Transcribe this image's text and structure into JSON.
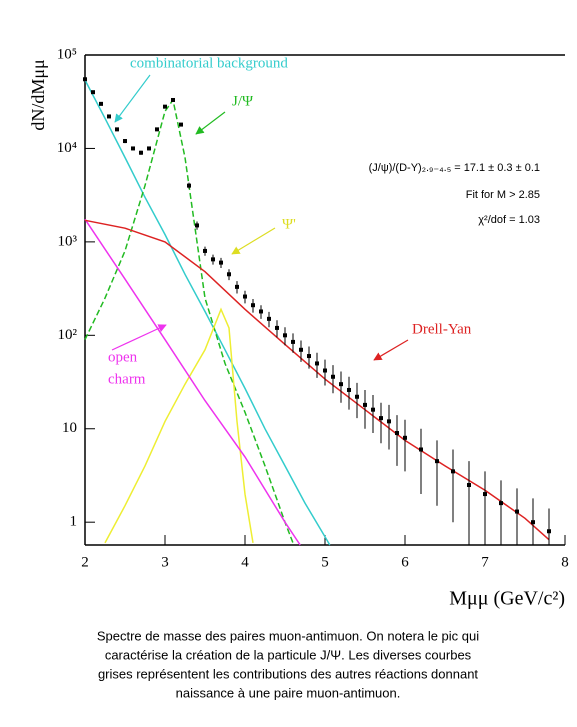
{
  "chart_data": {
    "type": "line",
    "log_y": true,
    "ylabel": "dN/dMμμ",
    "xlabel": "Mμμ (GeV/c²)",
    "xlim": [
      2,
      8
    ],
    "xticks": [
      2,
      3,
      4,
      5,
      6,
      7,
      8
    ],
    "ylim": [
      0.57,
      100000
    ],
    "yticks": [
      1,
      10,
      {
        "value": 100,
        "label": "10²"
      },
      {
        "value": 1000,
        "label": "10³"
      },
      {
        "value": 10000,
        "label": "10⁴"
      },
      {
        "value": 100000,
        "label": "10⁵"
      }
    ],
    "series": [
      {
        "name": "combinatorial background",
        "color": "#33cccc",
        "x": [
          2,
          2.25,
          2.5,
          2.75,
          3,
          3.25,
          3.5,
          3.75,
          4,
          4.25,
          4.5,
          4.75,
          5,
          5.06
        ],
        "values": [
          54000,
          21000,
          8000,
          3000,
          1200,
          450,
          180,
          70,
          27,
          10,
          4,
          1.6,
          0.7,
          0.57
        ]
      },
      {
        "name": "J/Ψ",
        "color": "#22bb22",
        "x": [
          2,
          2.25,
          2.5,
          2.75,
          3,
          3.1,
          3.25,
          3.5,
          3.75,
          4,
          4.25,
          4.5,
          4.6
        ],
        "values": [
          90,
          250,
          800,
          4000,
          25000,
          33000,
          8000,
          250,
          50,
          15,
          4,
          1,
          0.6
        ]
      },
      {
        "name": "Ψ'",
        "color": "#eeee33",
        "x": [
          2.25,
          2.5,
          2.75,
          3,
          3.25,
          3.5,
          3.7,
          3.8,
          3.9,
          4,
          4.1
        ],
        "values": [
          0.6,
          1.5,
          4,
          12,
          30,
          70,
          190,
          120,
          12,
          2,
          0.6
        ]
      },
      {
        "name": "open charm",
        "color": "#ee33ee",
        "x": [
          2,
          2.5,
          3,
          3.5,
          4,
          4.5,
          4.69
        ],
        "values": [
          1750,
          400,
          90,
          20,
          5,
          1,
          0.57
        ]
      },
      {
        "name": "Drell-Yan",
        "color": "#dd2222",
        "x": [
          2,
          2.5,
          3,
          3.5,
          4,
          4.5,
          5,
          5.5,
          6,
          6.5,
          7,
          7.5,
          7.8
        ],
        "values": [
          1700,
          1400,
          1000,
          480,
          190,
          80,
          34,
          16,
          7.5,
          4,
          2.2,
          1.1,
          0.65
        ]
      }
    ],
    "data_points": {
      "color": "#000000",
      "x": [
        2.0,
        2.1,
        2.2,
        2.3,
        2.4,
        2.5,
        2.6,
        2.7,
        2.8,
        2.9,
        3.0,
        3.1,
        3.2,
        3.3,
        3.4,
        3.5,
        3.6,
        3.7,
        3.8,
        3.9,
        4.0,
        4.1,
        4.2,
        4.3,
        4.4,
        4.5,
        4.6,
        4.7,
        4.8,
        4.9,
        5.0,
        5.1,
        5.2,
        5.3,
        5.4,
        5.5,
        5.6,
        5.7,
        5.8,
        5.9,
        6.0,
        6.2,
        6.4,
        6.6,
        6.8,
        7.0,
        7.2,
        7.4,
        7.6,
        7.8
      ],
      "values": [
        55000,
        40000,
        30000,
        22000,
        16000,
        12000,
        10000,
        9000,
        10000,
        16000,
        28000,
        33000,
        18000,
        4000,
        1500,
        800,
        650,
        600,
        450,
        330,
        260,
        210,
        180,
        150,
        120,
        100,
        85,
        70,
        60,
        50,
        42,
        36,
        30,
        26,
        22,
        18,
        16,
        13,
        12,
        9,
        8,
        6,
        4.5,
        3.5,
        2.5,
        2,
        1.6,
        1.3,
        1,
        0.8
      ],
      "errors": [
        1500,
        1200,
        1000,
        800,
        700,
        600,
        500,
        450,
        500,
        650,
        850,
        900,
        700,
        300,
        150,
        90,
        80,
        75,
        60,
        50,
        40,
        35,
        30,
        28,
        25,
        22,
        20,
        18,
        16,
        15,
        13,
        12,
        11,
        10,
        9,
        8,
        7,
        6,
        6,
        5,
        4.5,
        4,
        3,
        2.5,
        2,
        1.5,
        1.2,
        1,
        0.8,
        0.6
      ]
    },
    "annotations": [
      {
        "text": "combinatorial background",
        "color": "#33cccc"
      },
      {
        "text": "J/Ψ",
        "color": "#22bb22"
      },
      {
        "text": "Ψ'",
        "color": "#dddd22"
      },
      {
        "text": "open",
        "color": "#ee33ee"
      },
      {
        "text": "charm",
        "color": "#ee33ee"
      },
      {
        "text": "Drell-Yan",
        "color": "#dd2222"
      }
    ],
    "stats": [
      "(J/ψ)/(D-Y)₂.₉₋₄.₅ = 17.1  ± 0.3  ± 0.1",
      "Fit for M > 2.85",
      "χ²/dof = 1.03"
    ]
  },
  "caption": [
    "Spectre de masse des paires muon-antimuon. On notera le pic qui",
    "caractérise la création de la particule J/Ψ.  Les diverses courbes",
    "grises représentent les contributions des autres réactions donnant",
    "naissance à une paire muon-antimuon."
  ]
}
